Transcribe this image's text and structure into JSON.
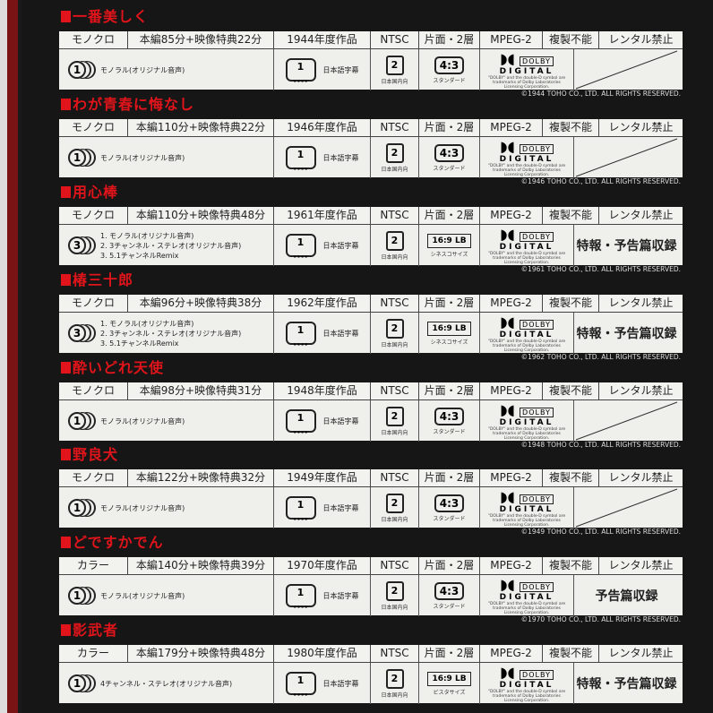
{
  "dolby_fine_print": "\"DOLBY\" and the double-D symbol are trademarks of Dolby Laboratories Licensing Corporation.",
  "labels": {
    "ntsc": "NTSC",
    "layers": "片面・2層",
    "mpeg": "MPEG-2",
    "copy": "複製不能",
    "rental": "レンタル禁止",
    "subtitle": "日本語字幕",
    "region": "日本国内向",
    "dolby": "DOLBY",
    "digital": "DIGITAL"
  },
  "colors": {
    "title": "#e0141a",
    "background": "#161616",
    "table": "#efefeb"
  },
  "films": [
    {
      "title": "一番美しく",
      "color": "モノクロ",
      "runtime": "本編85分+映像特典22分",
      "year": "1944年度作品",
      "audio_count": "1",
      "audio": [
        "モノラル(オリジナル音声)"
      ],
      "aspect": "4:3",
      "aspect_label": "スタンダード",
      "extra": "",
      "copyright": "©1944 TOHO CO., LTD.  ALL RIGHTS RESERVED."
    },
    {
      "title": "わが青春に悔なし",
      "color": "モノクロ",
      "runtime": "本編110分+映像特典22分",
      "year": "1946年度作品",
      "audio_count": "1",
      "audio": [
        "モノラル(オリジナル音声)"
      ],
      "aspect": "4:3",
      "aspect_label": "スタンダード",
      "extra": "",
      "copyright": "©1946 TOHO CO., LTD.  ALL RIGHTS RESERVED."
    },
    {
      "title": "用心棒",
      "color": "モノクロ",
      "runtime": "本編110分+映像特典48分",
      "year": "1961年度作品",
      "audio_count": "3",
      "audio": [
        "1. モノラル(オリジナル音声)",
        "2. 3チャンネル・ステレオ(オリジナル音声)",
        "3. 5.1チャンネルRemix"
      ],
      "aspect": "16:9 LB",
      "aspect_label": "シネスコサイズ",
      "extra": "特報・予告篇収録",
      "copyright": "©1961 TOHO CO., LTD.  ALL RIGHTS RESERVED."
    },
    {
      "title": "椿三十郎",
      "color": "モノクロ",
      "runtime": "本編96分+映像特典38分",
      "year": "1962年度作品",
      "audio_count": "3",
      "audio": [
        "1. モノラル(オリジナル音声)",
        "2. 3チャンネル・ステレオ(オリジナル音声)",
        "3. 5.1チャンネルRemix"
      ],
      "aspect": "16:9 LB",
      "aspect_label": "シネスコサイズ",
      "extra": "特報・予告篇収録",
      "copyright": "©1962 TOHO CO., LTD.  ALL RIGHTS RESERVED."
    },
    {
      "title": "酔いどれ天使",
      "color": "モノクロ",
      "runtime": "本編98分+映像特典31分",
      "year": "1948年度作品",
      "audio_count": "1",
      "audio": [
        "モノラル(オリジナル音声)"
      ],
      "aspect": "4:3",
      "aspect_label": "スタンダード",
      "extra": "",
      "copyright": "©1948 TOHO CO., LTD.  ALL RIGHTS RESERVED."
    },
    {
      "title": "野良犬",
      "color": "モノクロ",
      "runtime": "本編122分+映像特典32分",
      "year": "1949年度作品",
      "audio_count": "1",
      "audio": [
        "モノラル(オリジナル音声)"
      ],
      "aspect": "4:3",
      "aspect_label": "スタンダード",
      "extra": "",
      "copyright": "©1949 TOHO CO., LTD.  ALL RIGHTS RESERVED."
    },
    {
      "title": "どですかでん",
      "color": "カラー",
      "runtime": "本編140分+映像特典39分",
      "year": "1970年度作品",
      "audio_count": "1",
      "audio": [
        "モノラル(オリジナル音声)"
      ],
      "aspect": "4:3",
      "aspect_label": "スタンダード",
      "extra": "予告篇収録",
      "copyright": "©1970 TOHO CO., LTD.  ALL RIGHTS RESERVED."
    },
    {
      "title": "影武者",
      "color": "カラー",
      "runtime": "本編179分+映像特典48分",
      "year": "1980年度作品",
      "audio_count": "1",
      "audio": [
        "4チャンネル・ステレオ(オリジナル音声)"
      ],
      "aspect": "16:9 LB",
      "aspect_label": "ビスタサイズ",
      "extra": "特報・予告篇収録",
      "copyright": ""
    }
  ]
}
